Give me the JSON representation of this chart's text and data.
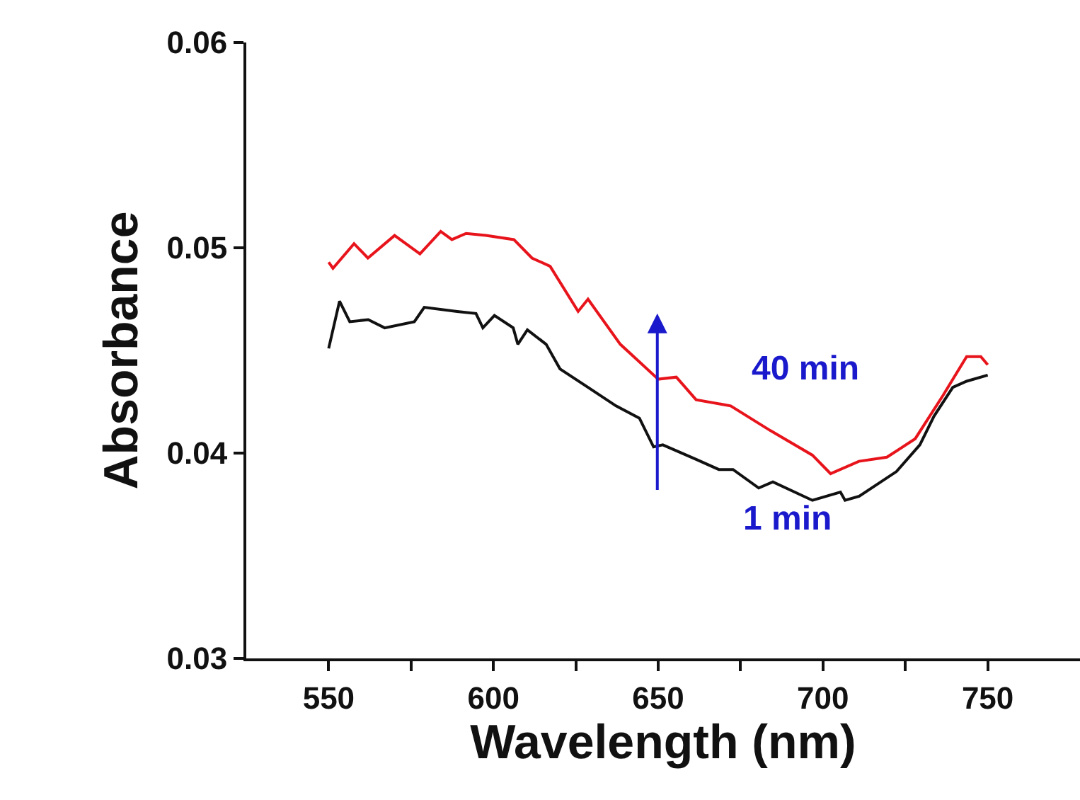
{
  "chart_data": {
    "type": "line",
    "xlabel": "Wavelength (nm)",
    "ylabel": "Absorbance",
    "xlim": [
      525,
      778
    ],
    "ylim": [
      0.03,
      0.06
    ],
    "xticks": [
      550,
      {
        "value": 575,
        "label": null
      },
      600,
      {
        "value": 625,
        "label": null
      },
      650,
      {
        "value": 675,
        "label": null
      },
      700,
      {
        "value": 725,
        "label": null
      },
      750
    ],
    "yticks": [
      0.03,
      0.04,
      0.05,
      0.06
    ],
    "marker": "none",
    "line_style": "solid",
    "series": [
      {
        "color": "#e8141c",
        "x": [
          550,
          551.3,
          557.7,
          561.9,
          570,
          577.7,
          584,
          587.4,
          591.7,
          597.7,
          606.2,
          611.7,
          617.2,
          625.7,
          628.7,
          638.5,
          650,
          655.5,
          661.5,
          672,
          684,
          696.8,
          702.3,
          710.9,
          719.4,
          728,
          736.4,
          743.6,
          747.9,
          750
        ],
        "values": [
          0.0493,
          0.049,
          0.0502,
          0.0495,
          0.0506,
          0.0497,
          0.0508,
          0.0504,
          0.0507,
          0.0506,
          0.0504,
          0.0495,
          0.0491,
          0.0469,
          0.0475,
          0.0453,
          0.0436,
          0.0437,
          0.0426,
          0.0423,
          0.0411,
          0.0399,
          0.039,
          0.0396,
          0.0398,
          0.0407,
          0.0428,
          0.0447,
          0.0447,
          0.0443
        ]
      },
      {
        "color": "#111111",
        "x": [
          550,
          553.3,
          556.4,
          562,
          567,
          576,
          579,
          589,
          594.7,
          596.8,
          600.3,
          606,
          607.4,
          610.3,
          616,
          620.2,
          628.7,
          637.2,
          644.3,
          648.6,
          651.4,
          661.4,
          668.4,
          672.7,
          680.5,
          684.8,
          696.8,
          705.3,
          706.7,
          711,
          722.3,
          729.4,
          733.7,
          739.4,
          743.6,
          750
        ],
        "values": [
          0.0451,
          0.0474,
          0.0464,
          0.0465,
          0.0461,
          0.0464,
          0.0471,
          0.0469,
          0.0468,
          0.0461,
          0.0467,
          0.0461,
          0.0453,
          0.046,
          0.0453,
          0.0441,
          0.0432,
          0.0423,
          0.0417,
          0.0403,
          0.0404,
          0.0397,
          0.0392,
          0.0392,
          0.0383,
          0.0386,
          0.0377,
          0.0381,
          0.0377,
          0.0379,
          0.0391,
          0.0404,
          0.0418,
          0.0432,
          0.0435,
          0.0438
        ]
      }
    ],
    "annotations": [
      "40 min",
      "1 min"
    ]
  }
}
